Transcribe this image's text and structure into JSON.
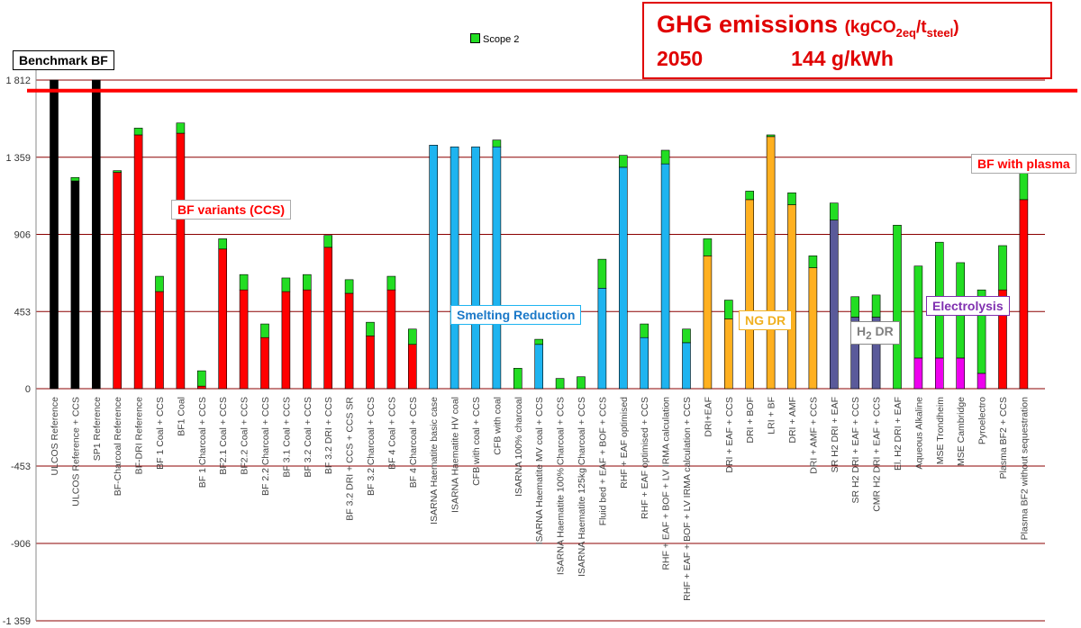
{
  "title": {
    "main": "GHG emissions",
    "unit_prefix": "(kgCO",
    "unit_sub1": "2eq",
    "unit_mid": "/t",
    "unit_sub2": "steel",
    "unit_suffix": ")",
    "year": "2050",
    "intensity": "144 g/kWh"
  },
  "legend": {
    "label": "Scope 2"
  },
  "colors": {
    "scope2": "#22dd22",
    "axis_line": "#8b0000",
    "benchmark_line": "#ff0000",
    "groups": {
      "black": "#000000",
      "red": "#ff0000",
      "cyan": "#1eb4f0",
      "orange": "#ffb020",
      "purple": "#5a5a9a",
      "magenta": "#ee00ee"
    }
  },
  "annotations": [
    {
      "key": "benchmark",
      "text": "Benchmark BF",
      "color": "#000000"
    },
    {
      "key": "bf_variants",
      "text": "BF variants (CCS)",
      "color": "#ff0000"
    },
    {
      "key": "smelting",
      "text": "Smelting Reduction",
      "color": "#1a78c8"
    },
    {
      "key": "ngdr",
      "text": "NG DR",
      "color": "#f0b020"
    },
    {
      "key": "h2dr",
      "text": "H",
      "sub": "2",
      "tail": " DR",
      "color": "#808080"
    },
    {
      "key": "electrolysis",
      "text": "Electrolysis",
      "color": "#8030b0"
    },
    {
      "key": "plasma",
      "text": "BF with plasma",
      "color": "#ff0000"
    }
  ],
  "chart_data": {
    "type": "bar",
    "stacked": true,
    "ylim": [
      -1359,
      1812
    ],
    "yticks": [
      1812,
      1359,
      906,
      453,
      0,
      -453,
      -906,
      -1359
    ],
    "ytick_labels": [
      "1 812",
      "1 359",
      "906",
      "453",
      "0",
      "-453",
      "-906",
      "-1 359"
    ],
    "benchmark_value": 1750,
    "grid": true,
    "legend_position": "top-center",
    "categories": [
      "ULCOS Reference",
      "ULCOS Reference + CCS",
      "SP1 Reference",
      "BF-Charcoal Reference",
      "BF-DRI Reference",
      "BF 1 Coal + CCS",
      "BF1 Coal",
      "BF 1 Charcoal + CCS",
      "BF2.1 Coal + CCS",
      "BF2.2 Coal + CCS",
      "BF 2.2 Charcoal + CCS",
      "BF 3.1 Coal + CCS",
      "BF 3.2 Coal + CCS",
      "BF 3.2 DRI + CCS",
      "BF 3.2 DRI + CCS + CCS SR",
      "BF 3.2 Charcoal + CCS",
      "BF 4 Coal + CCS",
      "BF 4 Charcoal + CCS",
      "ISARNA Haematite basic case",
      "ISARNA Haematite HV coal",
      "CFB with coal + CCS",
      "CFB with coal",
      "ISARNA 100% charcoal",
      "ISARNA Haematite MV coal + CCS",
      "ISARNA Haematite 100% Charcoal + CCS",
      "ISARNA Haematite 125kg Charcoal + CCS",
      "Fluid bed + EAF + BOF + CCS",
      "RHF + EAF optimised",
      "RHF + EAF optimised + CCS",
      "RHF + EAF + BOF + LV IRMA calculation",
      "RHF + EAF + BOF + LV IRMA calculation + CCS",
      "DRI+EAF",
      "DRI + EAF + CCS",
      "DRI + BOF",
      "LRI + BF",
      "DRI + AMF",
      "DRI + AMF + CCS",
      "SR H2 DRI + EAF",
      "SR H2 DRI + EAF + CCS",
      "CMR H2 DRI + EAF + CCS",
      "El. H2 DRI + EAF",
      "Aqueous Alkaline",
      "MSE Trondheim",
      "MSE Cambridge",
      "Pyroelectro",
      "Plasma BF2 + CCS",
      "Plasma BF2 without sequestration"
    ],
    "series": [
      {
        "name": "",
        "values": [
          1812,
          1220,
          1812,
          1270,
          1490,
          570,
          1500,
          15,
          820,
          580,
          300,
          570,
          580,
          830,
          560,
          310,
          580,
          260,
          1430,
          1420,
          1420,
          1420,
          0,
          260,
          0,
          0,
          590,
          1300,
          300,
          1320,
          270,
          780,
          410,
          1110,
          1480,
          1080,
          710,
          990,
          420,
          420,
          0,
          180,
          180,
          180,
          90,
          580,
          1110
        ],
        "colors": [
          "black",
          "black",
          "black",
          "red",
          "red",
          "red",
          "red",
          "red",
          "red",
          "red",
          "red",
          "red",
          "red",
          "red",
          "red",
          "red",
          "red",
          "red",
          "cyan",
          "cyan",
          "cyan",
          "cyan",
          "cyan",
          "cyan",
          "cyan",
          "cyan",
          "cyan",
          "cyan",
          "cyan",
          "cyan",
          "cyan",
          "orange",
          "orange",
          "orange",
          "orange",
          "orange",
          "orange",
          "purple",
          "purple",
          "purple",
          "purple",
          "magenta",
          "magenta",
          "magenta",
          "magenta",
          "red",
          "red"
        ]
      },
      {
        "name": "Scope 2",
        "values": [
          0,
          20,
          0,
          10,
          40,
          90,
          60,
          90,
          60,
          90,
          80,
          80,
          90,
          70,
          80,
          80,
          80,
          90,
          0,
          0,
          0,
          40,
          120,
          30,
          60,
          70,
          170,
          70,
          80,
          80,
          80,
          100,
          110,
          50,
          10,
          70,
          70,
          100,
          120,
          130,
          960,
          540,
          680,
          560,
          490,
          260,
          160
        ]
      }
    ]
  }
}
